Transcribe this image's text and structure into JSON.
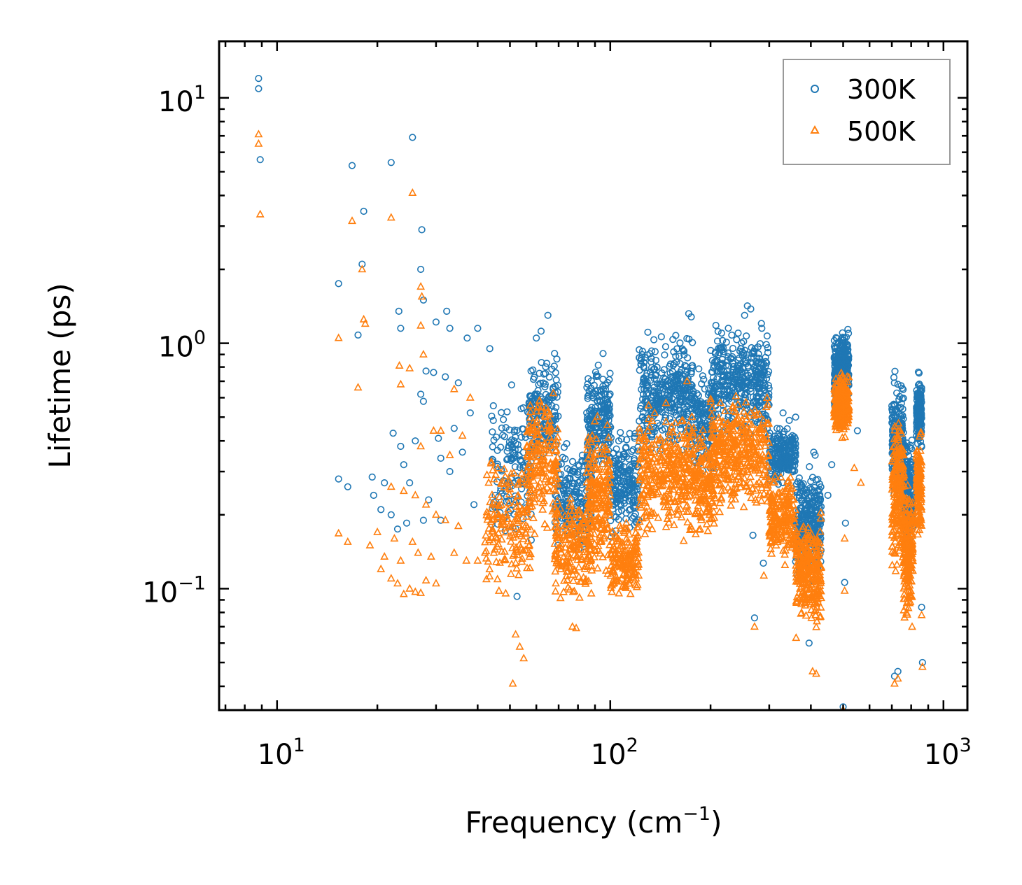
{
  "chart_data": {
    "type": "scatter",
    "title": "",
    "xlabel": "Frequency (cm",
    "xlabel_sup": "−1",
    "xlabel_end": ")",
    "ylabel": "Lifetime (ps)",
    "xscale": "log",
    "yscale": "log",
    "xlim": [
      6.7,
      1180
    ],
    "ylim": [
      0.032,
      17
    ],
    "x_ticks": [
      {
        "value": 10,
        "base": "10",
        "exp": "1"
      },
      {
        "value": 100,
        "base": "10",
        "exp": "2"
      },
      {
        "value": 1000,
        "base": "10",
        "exp": "3"
      }
    ],
    "y_ticks": [
      {
        "value": 0.1,
        "base": "10",
        "exp": "−1"
      },
      {
        "value": 1,
        "base": "10",
        "exp": "0"
      },
      {
        "value": 10,
        "base": "10",
        "exp": "1"
      }
    ],
    "legend_position": "top-right",
    "series": [
      {
        "name": "300K",
        "marker": "circle",
        "color": "#1f77b4",
        "clusters": [
          {
            "x0": 44,
            "x1": 58,
            "ylo": 0.12,
            "yhi": 0.75,
            "n": 140
          },
          {
            "x0": 57,
            "x1": 70,
            "ylo": 0.3,
            "yhi": 1.0,
            "n": 160
          },
          {
            "x0": 68,
            "x1": 88,
            "ylo": 0.13,
            "yhi": 0.42,
            "n": 200
          },
          {
            "x0": 85,
            "x1": 100,
            "ylo": 0.25,
            "yhi": 0.95,
            "n": 200
          },
          {
            "x0": 100,
            "x1": 122,
            "ylo": 0.15,
            "yhi": 0.5,
            "n": 180
          },
          {
            "x0": 122,
            "x1": 178,
            "ylo": 0.3,
            "yhi": 1.25,
            "n": 360
          },
          {
            "x0": 178,
            "x1": 205,
            "ylo": 0.24,
            "yhi": 0.9,
            "n": 150
          },
          {
            "x0": 200,
            "x1": 300,
            "ylo": 0.35,
            "yhi": 1.3,
            "n": 380
          },
          {
            "x0": 300,
            "x1": 360,
            "ylo": 0.25,
            "yhi": 0.5,
            "n": 200
          },
          {
            "x0": 360,
            "x1": 430,
            "ylo": 0.1,
            "yhi": 0.34,
            "n": 280
          },
          {
            "x0": 470,
            "x1": 520,
            "ylo": 0.5,
            "yhi": 1.2,
            "n": 320
          },
          {
            "x0": 700,
            "x1": 760,
            "ylo": 0.2,
            "yhi": 0.82,
            "n": 200
          },
          {
            "x0": 760,
            "x1": 810,
            "ylo": 0.12,
            "yhi": 0.5,
            "n": 200
          },
          {
            "x0": 830,
            "x1": 860,
            "ylo": 0.35,
            "yhi": 0.8,
            "n": 150
          }
        ],
        "points": [
          {
            "x": 8.8,
            "y": 12.0
          },
          {
            "x": 8.8,
            "y": 10.9
          },
          {
            "x": 8.9,
            "y": 5.6
          },
          {
            "x": 16.8,
            "y": 5.3
          },
          {
            "x": 22.0,
            "y": 5.45
          },
          {
            "x": 25.5,
            "y": 6.9
          },
          {
            "x": 18.2,
            "y": 3.45
          },
          {
            "x": 27.2,
            "y": 2.9
          },
          {
            "x": 18.0,
            "y": 2.1
          },
          {
            "x": 27.0,
            "y": 2.0
          },
          {
            "x": 15.3,
            "y": 1.75
          },
          {
            "x": 27.5,
            "y": 1.5
          },
          {
            "x": 23.2,
            "y": 1.35
          },
          {
            "x": 32.3,
            "y": 1.35
          },
          {
            "x": 30.0,
            "y": 1.22
          },
          {
            "x": 23.5,
            "y": 1.15
          },
          {
            "x": 33.0,
            "y": 1.15
          },
          {
            "x": 40.0,
            "y": 1.15
          },
          {
            "x": 17.5,
            "y": 1.08
          },
          {
            "x": 37.2,
            "y": 1.05
          },
          {
            "x": 43.5,
            "y": 0.95
          },
          {
            "x": 28.0,
            "y": 0.77
          },
          {
            "x": 29.5,
            "y": 0.76
          },
          {
            "x": 32.0,
            "y": 0.73
          },
          {
            "x": 35.0,
            "y": 0.69
          },
          {
            "x": 27.0,
            "y": 0.62
          },
          {
            "x": 27.5,
            "y": 0.58
          },
          {
            "x": 38.0,
            "y": 0.52
          },
          {
            "x": 34.0,
            "y": 0.45
          },
          {
            "x": 22.3,
            "y": 0.43
          },
          {
            "x": 23.5,
            "y": 0.38
          },
          {
            "x": 26.0,
            "y": 0.4
          },
          {
            "x": 30.5,
            "y": 0.41
          },
          {
            "x": 31.0,
            "y": 0.34
          },
          {
            "x": 36.0,
            "y": 0.36
          },
          {
            "x": 24.0,
            "y": 0.32
          },
          {
            "x": 33.0,
            "y": 0.3
          },
          {
            "x": 15.3,
            "y": 0.28
          },
          {
            "x": 16.3,
            "y": 0.26
          },
          {
            "x": 19.3,
            "y": 0.285
          },
          {
            "x": 21.0,
            "y": 0.27
          },
          {
            "x": 25.0,
            "y": 0.27
          },
          {
            "x": 19.5,
            "y": 0.24
          },
          {
            "x": 28.5,
            "y": 0.23
          },
          {
            "x": 39.0,
            "y": 0.22
          },
          {
            "x": 20.5,
            "y": 0.21
          },
          {
            "x": 22.0,
            "y": 0.2
          },
          {
            "x": 27.5,
            "y": 0.19
          },
          {
            "x": 24.5,
            "y": 0.185
          },
          {
            "x": 31.0,
            "y": 0.19
          },
          {
            "x": 23.0,
            "y": 0.175
          },
          {
            "x": 65.0,
            "y": 1.3
          },
          {
            "x": 62.0,
            "y": 1.12
          },
          {
            "x": 60.0,
            "y": 1.05
          },
          {
            "x": 85.0,
            "y": 0.52
          },
          {
            "x": 113.0,
            "y": 0.27
          },
          {
            "x": 118.0,
            "y": 0.24
          },
          {
            "x": 172.0,
            "y": 1.32
          },
          {
            "x": 175.0,
            "y": 1.28
          },
          {
            "x": 258.0,
            "y": 1.42
          },
          {
            "x": 264.0,
            "y": 1.38
          },
          {
            "x": 253.0,
            "y": 1.3
          },
          {
            "x": 285.0,
            "y": 1.15
          },
          {
            "x": 242.0,
            "y": 1.1
          },
          {
            "x": 247.0,
            "y": 0.95
          },
          {
            "x": 330.0,
            "y": 0.52
          },
          {
            "x": 360.0,
            "y": 0.5
          },
          {
            "x": 408.0,
            "y": 0.36
          },
          {
            "x": 412.0,
            "y": 0.35
          },
          {
            "x": 450.0,
            "y": 0.24
          },
          {
            "x": 462.0,
            "y": 0.32
          },
          {
            "x": 430.0,
            "y": 0.19
          },
          {
            "x": 420.0,
            "y": 0.12
          },
          {
            "x": 395.0,
            "y": 0.06
          },
          {
            "x": 268.0,
            "y": 0.165
          },
          {
            "x": 288.0,
            "y": 0.127
          },
          {
            "x": 271.0,
            "y": 0.076
          },
          {
            "x": 508.0,
            "y": 0.185
          },
          {
            "x": 505.0,
            "y": 0.106
          },
          {
            "x": 500.0,
            "y": 0.033
          },
          {
            "x": 552.0,
            "y": 0.44
          },
          {
            "x": 713.0,
            "y": 0.044
          },
          {
            "x": 730.0,
            "y": 0.046
          },
          {
            "x": 865.0,
            "y": 0.05
          },
          {
            "x": 860.0,
            "y": 0.084
          },
          {
            "x": 52.5,
            "y": 0.093
          },
          {
            "x": 74.0,
            "y": 0.39
          }
        ]
      },
      {
        "name": "500K",
        "marker": "triangle",
        "color": "#ff7f0e",
        "clusters": [
          {
            "x0": 42,
            "x1": 58,
            "ylo": 0.08,
            "yhi": 0.42,
            "n": 170
          },
          {
            "x0": 56,
            "x1": 70,
            "ylo": 0.15,
            "yhi": 0.72,
            "n": 180
          },
          {
            "x0": 68,
            "x1": 88,
            "ylo": 0.08,
            "yhi": 0.27,
            "n": 200
          },
          {
            "x0": 85,
            "x1": 100,
            "ylo": 0.1,
            "yhi": 0.58,
            "n": 200
          },
          {
            "x0": 100,
            "x1": 122,
            "ylo": 0.085,
            "yhi": 0.2,
            "n": 170
          },
          {
            "x0": 122,
            "x1": 178,
            "ylo": 0.14,
            "yhi": 0.62,
            "n": 340
          },
          {
            "x0": 178,
            "x1": 205,
            "ylo": 0.15,
            "yhi": 0.5,
            "n": 140
          },
          {
            "x0": 200,
            "x1": 300,
            "ylo": 0.18,
            "yhi": 0.68,
            "n": 380
          },
          {
            "x0": 300,
            "x1": 360,
            "ylo": 0.12,
            "yhi": 0.32,
            "n": 200
          },
          {
            "x0": 360,
            "x1": 430,
            "ylo": 0.06,
            "yhi": 0.22,
            "n": 300
          },
          {
            "x0": 470,
            "x1": 520,
            "ylo": 0.4,
            "yhi": 0.78,
            "n": 300
          },
          {
            "x0": 700,
            "x1": 760,
            "ylo": 0.1,
            "yhi": 0.55,
            "n": 200
          },
          {
            "x0": 760,
            "x1": 810,
            "ylo": 0.06,
            "yhi": 0.3,
            "n": 200
          },
          {
            "x0": 830,
            "x1": 860,
            "ylo": 0.14,
            "yhi": 0.5,
            "n": 140
          }
        ],
        "points": [
          {
            "x": 8.8,
            "y": 7.1
          },
          {
            "x": 8.8,
            "y": 6.5
          },
          {
            "x": 8.9,
            "y": 3.35
          },
          {
            "x": 25.5,
            "y": 4.1
          },
          {
            "x": 16.8,
            "y": 3.15
          },
          {
            "x": 22.0,
            "y": 3.25
          },
          {
            "x": 18.0,
            "y": 2.0
          },
          {
            "x": 27.0,
            "y": 1.7
          },
          {
            "x": 27.2,
            "y": 1.55
          },
          {
            "x": 18.2,
            "y": 1.25
          },
          {
            "x": 18.4,
            "y": 1.2
          },
          {
            "x": 27.0,
            "y": 1.18
          },
          {
            "x": 15.3,
            "y": 1.05
          },
          {
            "x": 27.5,
            "y": 0.9
          },
          {
            "x": 23.3,
            "y": 0.81
          },
          {
            "x": 25.0,
            "y": 0.79
          },
          {
            "x": 17.5,
            "y": 0.66
          },
          {
            "x": 23.5,
            "y": 0.68
          },
          {
            "x": 34.0,
            "y": 0.65
          },
          {
            "x": 38.0,
            "y": 0.6
          },
          {
            "x": 29.5,
            "y": 0.44
          },
          {
            "x": 31.0,
            "y": 0.44
          },
          {
            "x": 36.0,
            "y": 0.42
          },
          {
            "x": 27.0,
            "y": 0.38
          },
          {
            "x": 33.0,
            "y": 0.35
          },
          {
            "x": 22.0,
            "y": 0.26
          },
          {
            "x": 24.0,
            "y": 0.25
          },
          {
            "x": 26.0,
            "y": 0.24
          },
          {
            "x": 28.0,
            "y": 0.22
          },
          {
            "x": 30.0,
            "y": 0.2
          },
          {
            "x": 32.0,
            "y": 0.19
          },
          {
            "x": 35.0,
            "y": 0.18
          },
          {
            "x": 20.0,
            "y": 0.17
          },
          {
            "x": 15.3,
            "y": 0.168
          },
          {
            "x": 16.3,
            "y": 0.155
          },
          {
            "x": 22.5,
            "y": 0.16
          },
          {
            "x": 25.5,
            "y": 0.155
          },
          {
            "x": 19.0,
            "y": 0.15
          },
          {
            "x": 21.0,
            "y": 0.135
          },
          {
            "x": 23.5,
            "y": 0.13
          },
          {
            "x": 26.5,
            "y": 0.14
          },
          {
            "x": 29.0,
            "y": 0.135
          },
          {
            "x": 34.0,
            "y": 0.14
          },
          {
            "x": 37.0,
            "y": 0.13
          },
          {
            "x": 40.0,
            "y": 0.13
          },
          {
            "x": 20.5,
            "y": 0.12
          },
          {
            "x": 22.0,
            "y": 0.11
          },
          {
            "x": 23.0,
            "y": 0.105
          },
          {
            "x": 25.0,
            "y": 0.1
          },
          {
            "x": 26.0,
            "y": 0.097
          },
          {
            "x": 28.0,
            "y": 0.108
          },
          {
            "x": 30.0,
            "y": 0.105
          },
          {
            "x": 24.0,
            "y": 0.095
          },
          {
            "x": 27.0,
            "y": 0.096
          },
          {
            "x": 52.0,
            "y": 0.065
          },
          {
            "x": 53.5,
            "y": 0.058
          },
          {
            "x": 51.0,
            "y": 0.041
          },
          {
            "x": 55.0,
            "y": 0.052
          },
          {
            "x": 77.0,
            "y": 0.07
          },
          {
            "x": 79.0,
            "y": 0.069
          },
          {
            "x": 405.0,
            "y": 0.046
          },
          {
            "x": 415.0,
            "y": 0.045
          },
          {
            "x": 500.0,
            "y": 0.032
          },
          {
            "x": 565.0,
            "y": 0.27
          },
          {
            "x": 540.0,
            "y": 0.31
          },
          {
            "x": 505.0,
            "y": 0.16
          },
          {
            "x": 505.0,
            "y": 0.098
          },
          {
            "x": 289.0,
            "y": 0.113
          },
          {
            "x": 271.0,
            "y": 0.07
          },
          {
            "x": 713.0,
            "y": 0.041
          },
          {
            "x": 730.0,
            "y": 0.043
          },
          {
            "x": 860.0,
            "y": 0.078
          },
          {
            "x": 865.0,
            "y": 0.048
          },
          {
            "x": 264.0,
            "y": 0.52
          },
          {
            "x": 170.0,
            "y": 0.7
          }
        ]
      }
    ]
  }
}
